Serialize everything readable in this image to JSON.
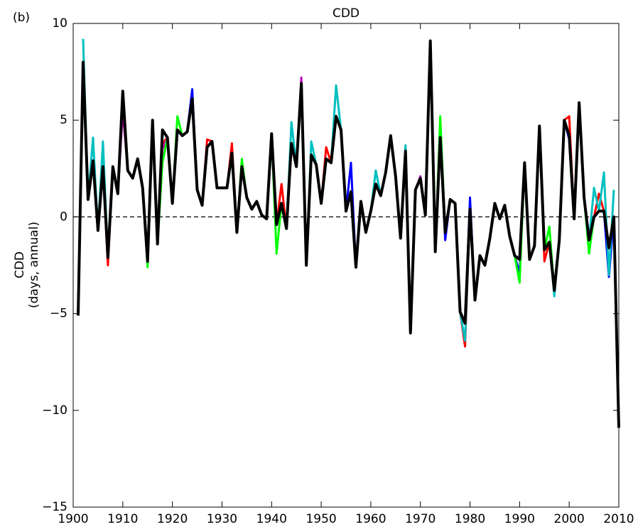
{
  "chart_data": {
    "type": "line",
    "panel_label": "(b)",
    "title": "CDD",
    "ylabel": [
      "CDD",
      "(days, annual)"
    ],
    "x": [
      1901,
      1902,
      1903,
      1904,
      1905,
      1906,
      1907,
      1908,
      1909,
      1910,
      1911,
      1912,
      1913,
      1914,
      1915,
      1916,
      1917,
      1918,
      1919,
      1920,
      1921,
      1922,
      1923,
      1924,
      1925,
      1926,
      1927,
      1928,
      1929,
      1930,
      1931,
      1932,
      1933,
      1934,
      1935,
      1936,
      1937,
      1938,
      1939,
      1940,
      1941,
      1942,
      1943,
      1944,
      1945,
      1946,
      1947,
      1948,
      1949,
      1950,
      1951,
      1952,
      1953,
      1954,
      1955,
      1956,
      1957,
      1958,
      1959,
      1960,
      1961,
      1962,
      1963,
      1964,
      1965,
      1966,
      1967,
      1968,
      1969,
      1970,
      1971,
      1972,
      1973,
      1974,
      1975,
      1976,
      1977,
      1978,
      1979,
      1980,
      1981,
      1982,
      1983,
      1984,
      1985,
      1986,
      1987,
      1988,
      1989,
      1990,
      1991,
      1992,
      1993,
      1994,
      1995,
      1996,
      1997,
      1998,
      1999,
      2000,
      2001,
      2002,
      2003,
      2004,
      2005,
      2006,
      2007,
      2008,
      2009,
      2010
    ],
    "xlim": [
      1900,
      2010
    ],
    "xticks": [
      1900,
      1910,
      1920,
      1930,
      1940,
      1950,
      1960,
      1970,
      1980,
      1990,
      2000,
      2010
    ],
    "ylim": [
      -15,
      10
    ],
    "yticks": [
      {
        "value": -15,
        "label": "−15"
      },
      {
        "value": -10,
        "label": "−10"
      },
      {
        "value": -5,
        "label": "−5"
      },
      0,
      5,
      10
    ],
    "reference_line": {
      "value": 0,
      "style": "dashed",
      "color": "#000000"
    },
    "series": [
      {
        "color": "#ff0000",
        "values": [
          null,
          8.0,
          0.9,
          2.9,
          -0.7,
          2.6,
          -2.5,
          2.6,
          1.2,
          6.5,
          2.4,
          2.0,
          3.0,
          1.5,
          -2.3,
          5.0,
          -1.4,
          3.8,
          4.1,
          0.7,
          4.5,
          4.2,
          4.4,
          6.1,
          1.4,
          0.6,
          4.0,
          3.9,
          1.5,
          1.5,
          1.5,
          3.8,
          -0.8,
          2.6,
          1.0,
          0.4,
          0.8,
          0.1,
          -0.1,
          4.3,
          -0.4,
          1.7,
          -0.6,
          3.8,
          2.6,
          6.9,
          -2.5,
          3.2,
          2.7,
          0.7,
          3.6,
          2.8,
          5.2,
          4.5,
          0.3,
          1.3,
          -2.6,
          0.8,
          -0.8,
          0.3,
          1.7,
          1.1,
          2.3,
          4.2,
          2.1,
          -1.1,
          3.4,
          -6.0,
          1.4,
          2.0,
          0.1,
          9.1,
          -1.8,
          4.1,
          -0.8,
          0.9,
          0.7,
          -4.9,
          -6.7,
          0.4,
          -4.3,
          -2.0,
          -2.5,
          -1.1,
          0.7,
          -0.1,
          0.6,
          -1.0,
          -2.0,
          -2.2,
          2.8,
          -2.2,
          -1.5,
          4.7,
          -2.3,
          -1.3,
          -3.8,
          -1.2,
          5.0,
          5.2,
          -0.1,
          5.9,
          1.0,
          -1.2,
          0.0,
          1.2,
          0.3,
          -1.6,
          0.0,
          null
        ]
      },
      {
        "color": "#bf00bf",
        "values": [
          null,
          8.0,
          0.9,
          2.9,
          -0.7,
          2.6,
          -2.1,
          2.6,
          1.2,
          5.5,
          2.4,
          2.0,
          3.0,
          1.5,
          -2.3,
          5.0,
          -1.4,
          3.5,
          4.1,
          0.7,
          4.5,
          4.2,
          4.4,
          6.5,
          1.4,
          0.6,
          3.6,
          3.9,
          1.5,
          1.5,
          1.5,
          3.3,
          -0.8,
          2.6,
          1.0,
          0.4,
          0.8,
          0.1,
          -0.1,
          4.3,
          -0.4,
          0.7,
          -0.6,
          3.8,
          2.6,
          7.2,
          -2.5,
          3.2,
          2.7,
          0.7,
          3.0,
          2.8,
          5.2,
          4.5,
          0.3,
          1.3,
          -2.6,
          0.8,
          -0.8,
          0.3,
          1.7,
          1.1,
          2.3,
          4.2,
          2.1,
          -1.1,
          3.4,
          -6.0,
          1.4,
          2.1,
          0.1,
          9.1,
          -1.8,
          5.0,
          -0.8,
          0.9,
          0.7,
          -4.9,
          -5.5,
          0.4,
          -4.3,
          -2.0,
          -2.5,
          -1.1,
          0.7,
          -0.1,
          0.6,
          -1.0,
          -2.0,
          -2.2,
          2.8,
          -2.2,
          -1.5,
          4.7,
          -1.7,
          -1.3,
          -3.8,
          -1.2,
          5.0,
          4.2,
          -0.1,
          5.9,
          1.0,
          -1.2,
          0.0,
          0.3,
          0.3,
          -1.6,
          0.0,
          null
        ]
      },
      {
        "color": "#0000ff",
        "values": [
          null,
          8.0,
          0.9,
          2.9,
          -0.7,
          2.6,
          -2.1,
          2.6,
          1.2,
          6.5,
          2.4,
          2.0,
          3.0,
          1.5,
          -2.3,
          5.0,
          -1.4,
          4.5,
          4.1,
          0.7,
          4.5,
          4.2,
          4.4,
          6.6,
          1.4,
          0.6,
          3.6,
          3.9,
          1.5,
          1.5,
          1.5,
          3.3,
          -0.8,
          2.6,
          1.0,
          0.4,
          0.8,
          0.1,
          -0.1,
          4.3,
          -0.4,
          0.7,
          -0.6,
          3.8,
          2.6,
          6.9,
          -2.5,
          3.2,
          2.7,
          0.7,
          3.0,
          2.8,
          5.2,
          4.5,
          0.3,
          2.8,
          -2.6,
          0.8,
          -0.8,
          0.3,
          1.7,
          1.1,
          2.3,
          4.2,
          2.1,
          -1.1,
          3.4,
          -6.0,
          1.4,
          2.0,
          0.1,
          9.1,
          -1.8,
          4.1,
          -1.2,
          0.9,
          0.7,
          -4.9,
          -5.5,
          1.0,
          -4.3,
          -2.0,
          -2.5,
          -1.1,
          0.7,
          -0.1,
          0.6,
          -1.0,
          -2.0,
          -2.9,
          2.8,
          -2.2,
          -1.5,
          4.7,
          -1.7,
          -1.3,
          -3.8,
          -1.2,
          5.0,
          4.0,
          -0.1,
          5.9,
          1.0,
          -1.2,
          0.0,
          0.3,
          0.3,
          -3.1,
          0.0,
          null
        ]
      },
      {
        "color": "#00ff00",
        "values": [
          null,
          8.0,
          0.9,
          2.9,
          -0.7,
          2.6,
          -2.1,
          2.6,
          1.2,
          6.5,
          2.4,
          2.0,
          3.0,
          1.5,
          -2.6,
          5.0,
          -1.4,
          2.8,
          4.1,
          0.7,
          5.2,
          4.2,
          4.4,
          6.1,
          1.4,
          0.6,
          3.6,
          3.9,
          1.5,
          1.5,
          1.5,
          3.3,
          -0.8,
          3.0,
          1.0,
          0.4,
          0.8,
          0.1,
          -0.1,
          4.3,
          -1.9,
          0.7,
          -0.6,
          3.8,
          2.6,
          6.9,
          -2.5,
          3.2,
          2.7,
          0.7,
          3.0,
          2.8,
          5.2,
          4.5,
          0.3,
          1.3,
          -2.6,
          0.8,
          -0.8,
          0.3,
          1.7,
          1.1,
          2.3,
          4.2,
          2.1,
          -1.1,
          3.4,
          -6.0,
          1.4,
          2.0,
          0.1,
          9.1,
          -1.8,
          5.2,
          -0.8,
          0.9,
          0.7,
          -4.9,
          -5.5,
          0.4,
          -4.3,
          -2.0,
          -2.5,
          -1.1,
          0.7,
          -0.1,
          0.6,
          -1.0,
          -2.0,
          -3.4,
          2.8,
          -2.2,
          -1.5,
          4.7,
          -1.7,
          -0.5,
          -3.8,
          -1.2,
          5.0,
          4.2,
          -0.1,
          5.9,
          1.0,
          -1.9,
          0.0,
          0.3,
          0.3,
          -1.6,
          0.0,
          null
        ]
      },
      {
        "color": "#00bfbf",
        "values": [
          null,
          9.2,
          0.9,
          4.1,
          -0.7,
          3.9,
          -2.1,
          2.6,
          1.2,
          6.5,
          2.4,
          2.0,
          3.0,
          1.5,
          -2.3,
          5.0,
          -1.4,
          4.5,
          4.1,
          0.7,
          4.5,
          4.2,
          4.4,
          6.1,
          1.4,
          0.6,
          3.6,
          3.9,
          1.5,
          1.5,
          1.5,
          3.3,
          -0.8,
          2.6,
          1.0,
          0.4,
          0.8,
          0.1,
          -0.1,
          4.3,
          -0.4,
          0.7,
          -0.6,
          4.9,
          2.6,
          6.9,
          -2.5,
          3.9,
          2.7,
          0.7,
          3.0,
          2.8,
          6.8,
          4.5,
          0.3,
          1.3,
          -2.6,
          0.8,
          -0.8,
          0.3,
          2.4,
          1.1,
          2.3,
          4.2,
          2.1,
          -1.1,
          3.7,
          -6.0,
          1.4,
          2.0,
          0.1,
          9.1,
          -1.8,
          4.1,
          -0.8,
          0.9,
          0.7,
          -4.9,
          -6.4,
          0.4,
          -4.3,
          -2.0,
          -2.5,
          -1.1,
          0.7,
          -0.1,
          0.6,
          -1.0,
          -2.0,
          -2.2,
          2.8,
          -2.2,
          -1.5,
          4.7,
          -1.7,
          -1.3,
          -4.1,
          -1.2,
          5.0,
          4.2,
          -0.1,
          5.9,
          1.0,
          -1.2,
          1.5,
          0.3,
          2.3,
          -3.0,
          1.4,
          null
        ]
      },
      {
        "color": "#000000",
        "values": [
          -5.1,
          8.0,
          0.9,
          2.9,
          -0.7,
          2.6,
          -2.1,
          2.6,
          1.2,
          6.5,
          2.4,
          2.0,
          3.0,
          1.5,
          -2.3,
          5.0,
          -1.4,
          4.5,
          4.1,
          0.7,
          4.5,
          4.2,
          4.4,
          6.1,
          1.4,
          0.6,
          3.6,
          3.9,
          1.5,
          1.5,
          1.5,
          3.3,
          -0.8,
          2.6,
          1.0,
          0.4,
          0.8,
          0.1,
          -0.1,
          4.3,
          -0.4,
          0.7,
          -0.6,
          3.8,
          2.6,
          6.9,
          -2.5,
          3.2,
          2.7,
          0.7,
          3.0,
          2.8,
          5.2,
          4.5,
          0.3,
          1.3,
          -2.6,
          0.8,
          -0.8,
          0.3,
          1.7,
          1.1,
          2.3,
          4.2,
          2.1,
          -1.1,
          3.4,
          -6.0,
          1.4,
          2.0,
          0.1,
          9.1,
          -1.8,
          4.1,
          -0.8,
          0.9,
          0.7,
          -4.9,
          -5.5,
          0.4,
          -4.3,
          -2.0,
          -2.5,
          -1.1,
          0.7,
          -0.1,
          0.6,
          -1.0,
          -2.0,
          -2.2,
          2.8,
          -2.2,
          -1.5,
          4.7,
          -1.7,
          -1.3,
          -3.8,
          -1.2,
          5.0,
          4.2,
          -0.1,
          5.9,
          1.0,
          -1.2,
          0.0,
          0.3,
          0.3,
          -1.6,
          0.0,
          -10.9
        ]
      }
    ]
  }
}
